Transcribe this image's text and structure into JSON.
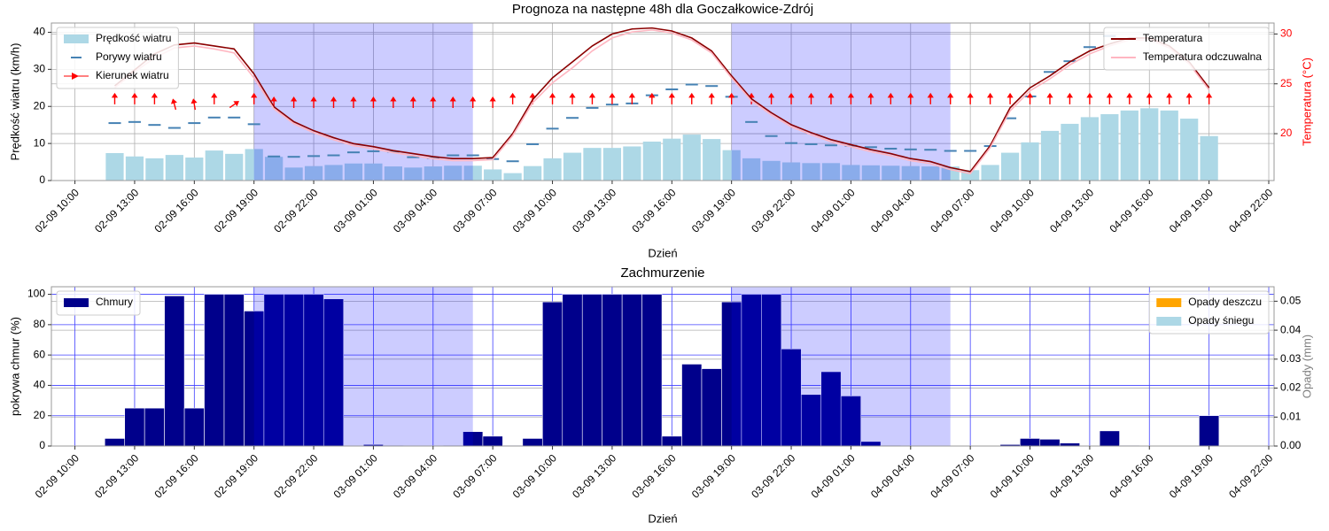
{
  "chart_data": [
    {
      "type": "combo",
      "title": "Prognoza na następne 48h dla Goczałkowice-Zdrój",
      "xlabel": "Dzień",
      "ylabel": "Prędkość wiatru (km/h)",
      "y2label": "Temperatura (°C)",
      "y2label_color": "#ff0000",
      "y2tick_color": "#ff0000",
      "x": [
        "02-09 12:00",
        "02-09 13:00",
        "02-09 14:00",
        "02-09 15:00",
        "02-09 16:00",
        "02-09 17:00",
        "02-09 18:00",
        "02-09 19:00",
        "02-09 20:00",
        "02-09 21:00",
        "02-09 22:00",
        "02-09 23:00",
        "03-09 00:00",
        "03-09 01:00",
        "03-09 02:00",
        "03-09 03:00",
        "03-09 04:00",
        "03-09 05:00",
        "03-09 06:00",
        "03-09 07:00",
        "03-09 08:00",
        "03-09 09:00",
        "03-09 10:00",
        "03-09 11:00",
        "03-09 12:00",
        "03-09 13:00",
        "03-09 14:00",
        "03-09 15:00",
        "03-09 16:00",
        "03-09 17:00",
        "03-09 18:00",
        "03-09 19:00",
        "03-09 20:00",
        "03-09 21:00",
        "03-09 22:00",
        "03-09 23:00",
        "04-09 00:00",
        "04-09 01:00",
        "04-09 02:00",
        "04-09 03:00",
        "04-09 04:00",
        "04-09 05:00",
        "04-09 06:00",
        "04-09 07:00",
        "04-09 08:00",
        "04-09 09:00",
        "04-09 10:00",
        "04-09 11:00",
        "04-09 12:00",
        "04-09 13:00",
        "04-09 14:00",
        "04-09 15:00",
        "04-09 16:00",
        "04-09 17:00",
        "04-09 18:00",
        "04-09 19:00"
      ],
      "xlim": [
        "02-09 08:49",
        "04-09 22:16"
      ],
      "xticks": [
        "02-09 10:00",
        "02-09 13:00",
        "02-09 16:00",
        "02-09 19:00",
        "02-09 22:00",
        "03-09 01:00",
        "03-09 04:00",
        "03-09 07:00",
        "03-09 10:00",
        "03-09 13:00",
        "03-09 16:00",
        "03-09 19:00",
        "03-09 22:00",
        "04-09 01:00",
        "04-09 04:00",
        "04-09 07:00",
        "04-09 10:00",
        "04-09 13:00",
        "04-09 16:00",
        "04-09 19:00",
        "04-09 22:00"
      ],
      "ylim": [
        0,
        42.5
      ],
      "yticks": [
        0,
        10,
        20,
        30,
        40
      ],
      "y2lim": [
        15.3,
        31.1
      ],
      "y2ticks": [
        20,
        25,
        30
      ],
      "grid": true,
      "grid_color": "#b0b0b0",
      "y2grid": true,
      "shaded_periods": [
        [
          "02-09 19:00",
          "03-09 06:00"
        ],
        [
          "03-09 19:00",
          "04-09 06:00"
        ]
      ],
      "shade_color": "#0000ff",
      "legend": "upper left",
      "legend2": "upper right",
      "series": [
        {
          "name": "Prędkość wiatru",
          "style": "bar",
          "color": "#add8e6",
          "values": [
            7.4,
            6.5,
            6.0,
            6.9,
            6.2,
            8.1,
            7.2,
            8.5,
            6.4,
            3.5,
            3.9,
            4.2,
            4.6,
            4.6,
            3.8,
            3.5,
            3.8,
            4.0,
            4.0,
            3.0,
            2.0,
            3.9,
            6.0,
            7.5,
            8.8,
            8.8,
            9.2,
            10.5,
            11.3,
            12.4,
            11.2,
            8.2,
            6.0,
            5.3,
            4.9,
            4.7,
            4.7,
            4.2,
            4.1,
            4.0,
            3.9,
            3.8,
            3.8,
            2.8,
            4.2,
            7.5,
            10.3,
            13.4,
            15.3,
            17.1,
            17.9,
            18.9,
            19.5,
            18.9,
            16.7,
            12.0
          ]
        },
        {
          "name": "Porywy wiatru",
          "style": "dash",
          "color": "#4682b4",
          "values": [
            15.5,
            15.8,
            15.0,
            14.2,
            15.5,
            17.0,
            17.0,
            15.2,
            6.5,
            6.4,
            6.6,
            6.8,
            7.6,
            7.9,
            7.8,
            6.3,
            6.1,
            6.8,
            6.8,
            5.8,
            5.2,
            9.8,
            14.0,
            16.9,
            19.6,
            20.5,
            20.8,
            23.0,
            24.6,
            25.9,
            25.5,
            22.6,
            15.8,
            12.0,
            10.1,
            9.8,
            9.5,
            9.4,
            9.0,
            8.6,
            8.4,
            8.3,
            8.0,
            8.0,
            9.3,
            16.8,
            22.7,
            29.3,
            32.2,
            36.0,
            39.0,
            43.5,
            44.5,
            44.0,
            43.0,
            42.8
          ]
        },
        {
          "name": "Kierunek wiatru",
          "style": "arrow",
          "color": "#ff0000",
          "values": [
            22,
            22,
            22,
            20.5,
            20.5,
            22,
            20.5,
            22,
            21,
            21,
            21,
            21,
            21,
            21,
            21,
            21,
            21,
            21,
            21,
            21,
            22,
            22,
            22,
            22,
            22,
            22,
            22,
            22,
            22,
            22,
            22,
            22,
            22,
            22,
            22,
            22,
            22,
            22,
            22,
            22,
            22,
            22,
            22,
            22,
            22,
            22,
            22,
            22,
            22,
            22,
            22,
            22,
            22,
            22,
            22,
            22
          ],
          "directions": [
            0,
            0,
            0,
            -15,
            -10,
            0,
            55,
            0,
            0,
            0,
            0,
            0,
            0,
            0,
            0,
            0,
            0,
            0,
            0,
            0,
            0,
            0,
            0,
            0,
            0,
            0,
            0,
            0,
            0,
            0,
            0,
            0,
            0,
            0,
            0,
            0,
            0,
            0,
            0,
            0,
            0,
            0,
            0,
            0,
            0,
            0,
            0,
            0,
            0,
            0,
            0,
            0,
            0,
            0,
            0,
            0
          ]
        },
        {
          "name": "Temperatura",
          "style": "line",
          "axis": "y2",
          "color": "#8b0000",
          "values": [
            24.8,
            26.4,
            28.0,
            28.9,
            29.1,
            28.8,
            28.5,
            26.0,
            22.7,
            21.2,
            20.3,
            19.6,
            19.0,
            18.7,
            18.3,
            18.0,
            17.7,
            17.5,
            17.5,
            17.6,
            20.0,
            23.4,
            25.6,
            27.2,
            28.8,
            30.0,
            30.5,
            30.6,
            30.3,
            29.6,
            28.3,
            25.8,
            23.5,
            22.1,
            20.9,
            20.1,
            19.4,
            18.9,
            18.4,
            18.0,
            17.5,
            17.2,
            16.6,
            16.2,
            18.8,
            22.6,
            24.6,
            25.8,
            27.2,
            28.3,
            29.0,
            29.6,
            29.6,
            28.8,
            27.2,
            24.6
          ]
        },
        {
          "name": "Temperatura odczuwalna",
          "style": "line",
          "axis": "y2",
          "color": "#ffb6c1",
          "values": [
            24.6,
            26.2,
            27.6,
            28.6,
            28.8,
            28.5,
            28.1,
            25.6,
            22.5,
            21.0,
            20.1,
            19.4,
            18.8,
            18.5,
            18.1,
            17.8,
            17.5,
            17.3,
            17.3,
            17.4,
            19.8,
            23.1,
            25.1,
            26.6,
            28.3,
            29.6,
            30.2,
            30.4,
            30.1,
            29.4,
            28.1,
            25.6,
            23.3,
            21.9,
            20.7,
            19.9,
            19.2,
            18.7,
            18.2,
            17.8,
            17.3,
            17.0,
            16.4,
            16.0,
            18.6,
            22.3,
            24.3,
            25.5,
            26.9,
            28.0,
            28.8,
            29.4,
            29.4,
            28.6,
            27.0,
            24.4
          ]
        }
      ]
    },
    {
      "type": "bar",
      "title": "Zachmurzenie",
      "xlabel": "Dzień",
      "ylabel": "pokrywa chmur (%)",
      "y2label": "Opady (mm)",
      "y2label_color": "#808080",
      "x": [
        "02-09 12:00",
        "02-09 13:00",
        "02-09 14:00",
        "02-09 15:00",
        "02-09 16:00",
        "02-09 17:00",
        "02-09 18:00",
        "02-09 19:00",
        "02-09 20:00",
        "02-09 21:00",
        "02-09 22:00",
        "02-09 23:00",
        "03-09 00:00",
        "03-09 01:00",
        "03-09 02:00",
        "03-09 03:00",
        "03-09 04:00",
        "03-09 05:00",
        "03-09 06:00",
        "03-09 07:00",
        "03-09 08:00",
        "03-09 09:00",
        "03-09 10:00",
        "03-09 11:00",
        "03-09 12:00",
        "03-09 13:00",
        "03-09 14:00",
        "03-09 15:00",
        "03-09 16:00",
        "03-09 17:00",
        "03-09 18:00",
        "03-09 19:00",
        "03-09 20:00",
        "03-09 21:00",
        "03-09 22:00",
        "03-09 23:00",
        "04-09 00:00",
        "04-09 01:00",
        "04-09 02:00",
        "04-09 03:00",
        "04-09 04:00",
        "04-09 05:00",
        "04-09 06:00",
        "04-09 07:00",
        "04-09 08:00",
        "04-09 09:00",
        "04-09 10:00",
        "04-09 11:00",
        "04-09 12:00",
        "04-09 13:00",
        "04-09 14:00",
        "04-09 15:00",
        "04-09 16:00",
        "04-09 17:00",
        "04-09 18:00",
        "04-09 19:00"
      ],
      "xlim": [
        "02-09 08:49",
        "04-09 22:16"
      ],
      "xticks": [
        "02-09 10:00",
        "02-09 13:00",
        "02-09 16:00",
        "02-09 19:00",
        "02-09 22:00",
        "03-09 01:00",
        "03-09 04:00",
        "03-09 07:00",
        "03-09 10:00",
        "03-09 13:00",
        "03-09 16:00",
        "03-09 19:00",
        "03-09 22:00",
        "04-09 01:00",
        "04-09 04:00",
        "04-09 07:00",
        "04-09 10:00",
        "04-09 13:00",
        "04-09 16:00",
        "04-09 19:00",
        "04-09 22:00"
      ],
      "ylim": [
        0,
        105
      ],
      "yticks": [
        0,
        20,
        40,
        60,
        80,
        100
      ],
      "y2lim": [
        0,
        0.055
      ],
      "y2ticks": [
        {
          "value": 0,
          "label": "0.00"
        },
        {
          "value": 0.01,
          "label": "0.01"
        },
        {
          "value": 0.02,
          "label": "0.02"
        },
        {
          "value": 0.03,
          "label": "0.03"
        },
        {
          "value": 0.04,
          "label": "0.04"
        },
        {
          "value": 0.05,
          "label": "0.05"
        }
      ],
      "grid": true,
      "grid_color": "#4040ff",
      "y2grid": true,
      "shaded_periods": [
        [
          "02-09 19:00",
          "03-09 06:00"
        ],
        [
          "03-09 19:00",
          "04-09 06:00"
        ]
      ],
      "shade_color": "#0000ff",
      "legend": "upper left",
      "legend2": "upper right",
      "series": [
        {
          "name": "Chmury",
          "style": "bar",
          "color": "#00008b",
          "values": [
            5,
            25,
            25,
            99,
            25,
            100,
            100,
            89,
            100,
            100,
            100,
            97,
            0,
            1,
            0.5,
            0,
            0,
            0.5,
            9.5,
            6.5,
            0.5,
            5,
            95,
            100,
            100,
            100,
            100,
            100,
            6.5,
            54,
            51,
            95,
            100,
            100,
            64,
            34,
            49,
            33,
            3,
            0.5,
            0,
            0,
            0,
            0,
            0,
            1,
            5,
            4.5,
            2,
            0,
            10,
            0.5,
            0,
            0,
            0,
            20
          ]
        },
        {
          "name": "Opady deszczu",
          "style": "bar",
          "axis": "y2",
          "color": "#ffa500",
          "values": [
            0,
            0,
            0,
            0,
            0,
            0,
            0,
            0,
            0,
            0,
            0,
            0,
            0,
            0,
            0,
            0,
            0,
            0,
            0,
            0,
            0,
            0,
            0,
            0,
            0,
            0,
            0,
            0,
            0,
            0,
            0,
            0,
            0,
            0,
            0,
            0,
            0,
            0,
            0,
            0,
            0,
            0,
            0,
            0,
            0,
            0,
            0,
            0,
            0,
            0,
            0,
            0,
            0,
            0,
            0,
            0
          ]
        },
        {
          "name": "Opady śniegu",
          "style": "bar",
          "axis": "y2",
          "color": "#add8e6",
          "values": [
            0,
            0,
            0,
            0,
            0,
            0,
            0,
            0,
            0,
            0,
            0,
            0,
            0,
            0,
            0,
            0,
            0,
            0,
            0,
            0,
            0,
            0,
            0,
            0,
            0,
            0,
            0,
            0,
            0,
            0,
            0,
            0,
            0,
            0,
            0,
            0,
            0,
            0,
            0,
            0,
            0,
            0,
            0,
            0,
            0,
            0,
            0,
            0,
            0,
            0,
            0,
            0,
            0,
            0,
            0,
            0
          ]
        }
      ]
    }
  ]
}
